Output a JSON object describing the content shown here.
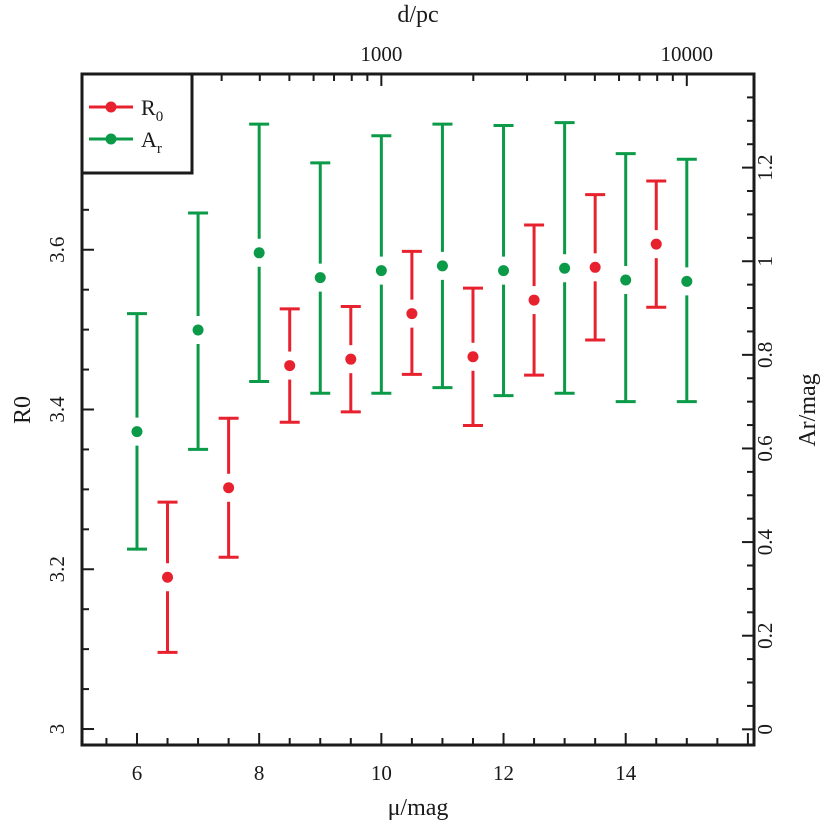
{
  "chart_data": {
    "type": "scatter",
    "xlabel": "μ/mag",
    "ylabel_left": "R0",
    "ylabel_right": "Ar/mag",
    "top_axis_label": "d/pc",
    "xlim": [
      5.1,
      16.1
    ],
    "ylim_left": [
      2.98,
      3.82
    ],
    "ylim_right": [
      -0.0335,
      1.4
    ],
    "x_ticks": [
      6,
      8,
      10,
      12,
      14
    ],
    "x_tick_labels": [
      "6",
      "8",
      "10",
      "12",
      "14"
    ],
    "y_left_ticks": [
      3.0,
      3.2,
      3.4,
      3.6
    ],
    "y_left_tick_labels": [
      "3",
      "3.2",
      "3.4",
      "3.6"
    ],
    "y_right_ticks": [
      0,
      0.2,
      0.4,
      0.6,
      0.8,
      1.0,
      1.2
    ],
    "y_right_tick_labels": [
      "0",
      "0.2",
      "0.4",
      "0.6",
      "0.8",
      "1",
      "1.2"
    ],
    "top_ticks": [
      1000,
      10000
    ],
    "top_tick_labels": [
      "1000",
      "10000"
    ],
    "legend": {
      "placement": "top-left",
      "entries": [
        {
          "series": "R0",
          "main": "R",
          "sub": "0"
        },
        {
          "series": "Ar",
          "main": "A",
          "sub": "r"
        }
      ]
    },
    "series": [
      {
        "name": "R0",
        "axis": "left",
        "color": "#e8212e",
        "x": [
          6.5,
          7.5,
          8.5,
          9.5,
          10.5,
          11.5,
          12.5,
          13.5,
          14.5
        ],
        "y": [
          3.19,
          3.302,
          3.455,
          3.463,
          3.52,
          3.466,
          3.537,
          3.578,
          3.607
        ],
        "err_low": [
          3.096,
          3.215,
          3.384,
          3.397,
          3.444,
          3.38,
          3.443,
          3.487,
          3.528
        ],
        "err_high": [
          3.284,
          3.389,
          3.526,
          3.529,
          3.598,
          3.552,
          3.631,
          3.669,
          3.686
        ]
      },
      {
        "name": "Ar",
        "axis": "right",
        "color": "#0b9a48",
        "x": [
          6,
          7,
          8,
          9,
          10,
          11,
          12,
          13,
          14,
          15
        ],
        "y": [
          0.636,
          0.853,
          1.018,
          0.965,
          0.98,
          0.99,
          0.98,
          0.985,
          0.96,
          0.957
        ],
        "err_low": [
          0.385,
          0.598,
          0.743,
          0.718,
          0.718,
          0.73,
          0.713,
          0.718,
          0.7,
          0.7
        ],
        "err_high": [
          0.888,
          1.103,
          1.293,
          1.21,
          1.268,
          1.293,
          1.29,
          1.296,
          1.23,
          1.218
        ]
      }
    ]
  },
  "colors": {
    "R0": "#e8212e",
    "Ar": "#0b9a48",
    "axis": "#1a1a1a"
  }
}
